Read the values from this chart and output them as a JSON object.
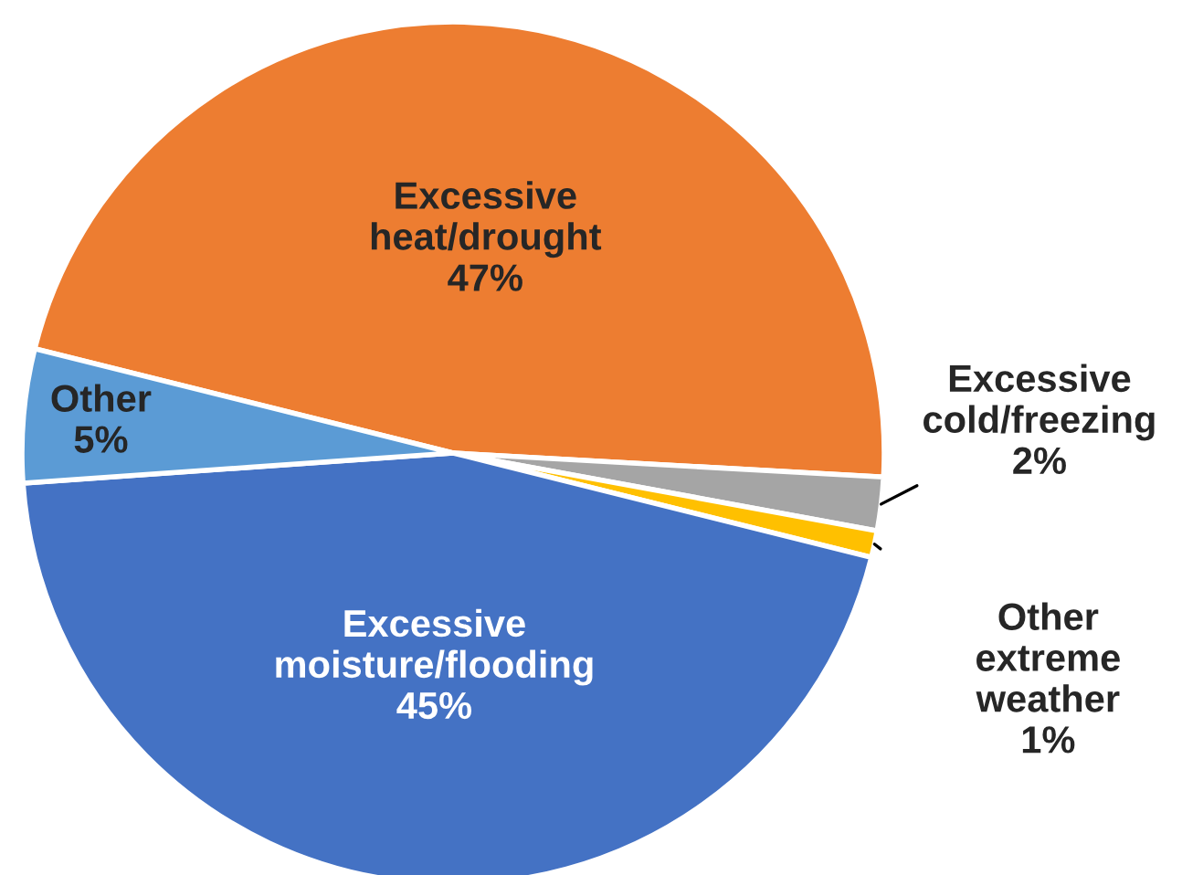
{
  "chart_data": {
    "type": "pie",
    "categories": [
      "Excessive\nheat/drought",
      "Excessive\ncold/freezing",
      "Other\nextreme\nweather",
      "Excessive\nmoisture/flooding",
      "Other"
    ],
    "values": [
      47,
      2,
      1,
      45,
      5
    ],
    "colors": [
      "#ed7d31",
      "#a5a5a5",
      "#ffc000",
      "#4472c4",
      "#5b9bd5"
    ],
    "value_labels": [
      "47%",
      "2%",
      "1%",
      "45%",
      "5%"
    ]
  }
}
